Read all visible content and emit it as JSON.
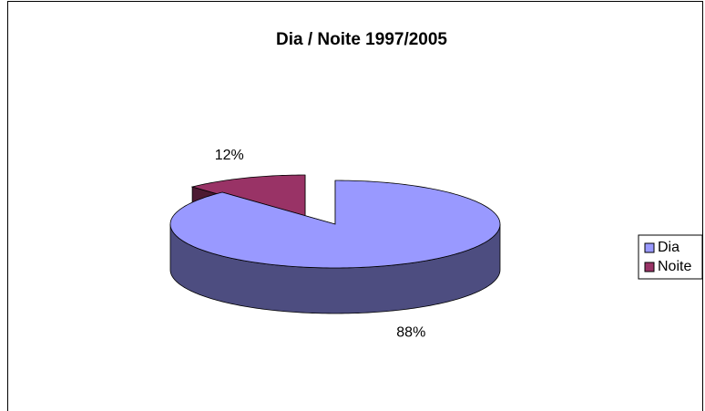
{
  "chart_data": {
    "type": "pie",
    "title": "Dia / Noite 1997/2005",
    "categories": [
      "Dia",
      "Noite"
    ],
    "values": [
      88,
      12
    ],
    "value_labels": [
      "88%",
      "12%"
    ],
    "colors": [
      "#9999ff",
      "#993366"
    ],
    "legend": "right"
  }
}
